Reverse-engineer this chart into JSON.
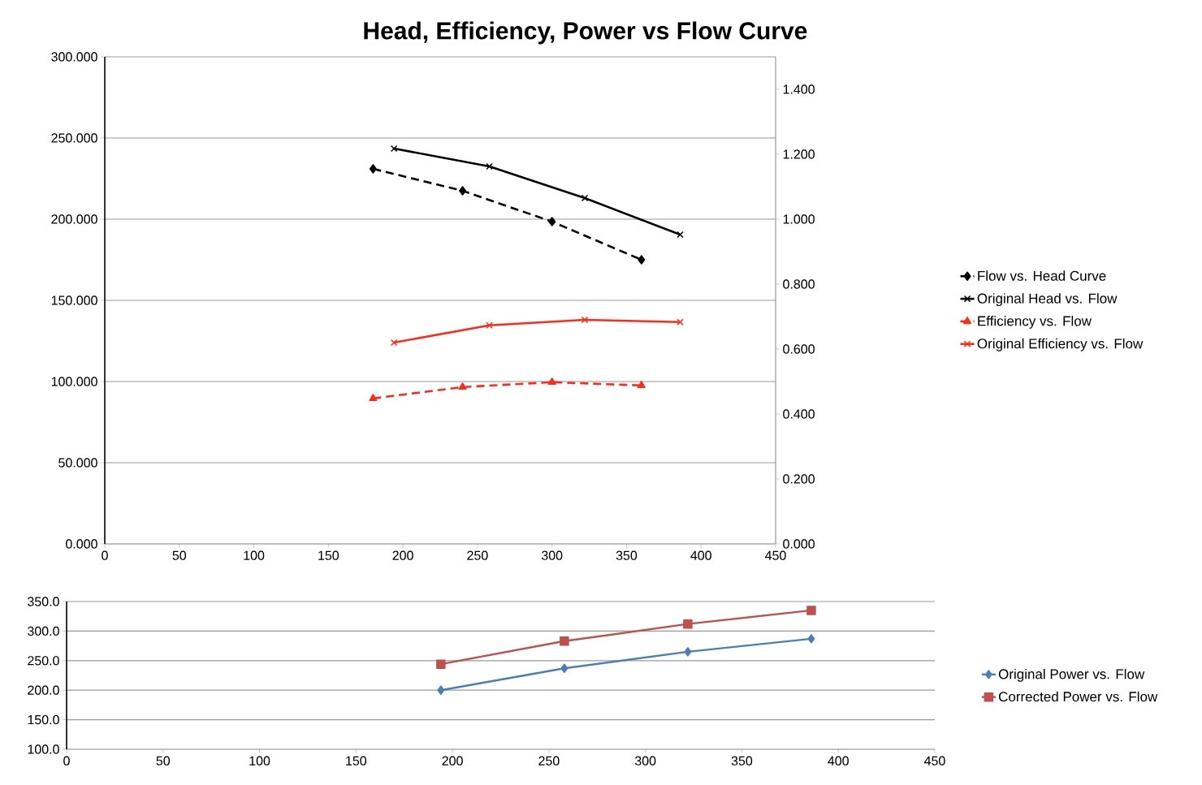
{
  "chart_data": [
    {
      "type": "line",
      "title": "Head, Efficiency, Power  vs Flow Curve",
      "xlim": [
        0,
        450
      ],
      "xticks": [
        0,
        50,
        100,
        150,
        200,
        250,
        300,
        350,
        400,
        450
      ],
      "ylim": [
        0,
        300
      ],
      "yticks": [
        {
          "value": 0,
          "label": "0.000"
        },
        {
          "value": 50,
          "label": "50.000"
        },
        {
          "value": 100,
          "label": "100.000"
        },
        {
          "value": 150,
          "label": "150.000"
        },
        {
          "value": 200,
          "label": "200.000"
        },
        {
          "value": 250,
          "label": "250.000"
        },
        {
          "value": 300,
          "label": "300.000"
        }
      ],
      "y2lim": [
        0,
        1.5
      ],
      "y2ticks": [
        {
          "value": 0,
          "label": "0.000"
        },
        {
          "value": 0.2,
          "label": "0.200"
        },
        {
          "value": 0.4,
          "label": "0.400"
        },
        {
          "value": 0.6,
          "label": "0.600"
        },
        {
          "value": 0.8,
          "label": "0.800"
        },
        {
          "value": 1.0,
          "label": "1.000"
        },
        {
          "value": 1.2,
          "label": "1.200"
        },
        {
          "value": 1.4,
          "label": "1.400"
        }
      ],
      "grid": "y",
      "legend": "right",
      "series": [
        {
          "name": "Flow vs. Head Curve",
          "color": "#000000",
          "marker": "diamond",
          "line_style": "dashed",
          "x": [
            180,
            240,
            300,
            360
          ],
          "values": [
            231,
            217.5,
            198.5,
            175
          ]
        },
        {
          "name": "Original Head vs. Flow",
          "color": "#000000",
          "marker": "cross",
          "line_style": "solid",
          "x": [
            194,
            258,
            322,
            386
          ],
          "values": [
            243.5,
            232.5,
            213,
            190.5
          ]
        },
        {
          "name": "Efficiency vs. Flow",
          "color": "#ff2a1a",
          "marker": "triangle",
          "line_style": "dashed",
          "axis": "y2",
          "x": [
            180,
            240,
            300,
            360
          ],
          "values": [
            0.448,
            0.483,
            0.498,
            0.488
          ]
        },
        {
          "name": "Original Efficiency vs. Flow",
          "color": "#ff2a1a",
          "marker": "cross",
          "line_style": "solid",
          "axis": "y2",
          "x": [
            194,
            258,
            322,
            386
          ],
          "values": [
            0.62,
            0.673,
            0.69,
            0.683
          ]
        }
      ]
    },
    {
      "type": "line",
      "xlim": [
        0,
        450
      ],
      "xticks": [
        0,
        50,
        100,
        150,
        200,
        250,
        300,
        350,
        400,
        450
      ],
      "ylim": [
        100,
        350
      ],
      "yticks": [
        {
          "value": 100,
          "label": "100.0"
        },
        {
          "value": 150,
          "label": "150.0"
        },
        {
          "value": 200,
          "label": "200.0"
        },
        {
          "value": 250,
          "label": "250.0"
        },
        {
          "value": 300,
          "label": "300.0"
        },
        {
          "value": 350,
          "label": "350.0"
        }
      ],
      "grid": "y",
      "legend": "right",
      "series": [
        {
          "name": "Original Power vs. Flow",
          "color": "#4a7ebb",
          "marker": "diamond",
          "line_style": "solid",
          "x": [
            194,
            258,
            322,
            386
          ],
          "values": [
            200,
            237,
            265,
            287
          ]
        },
        {
          "name": "Corrected Power vs. Flow",
          "color": "#c0504d",
          "marker": "square",
          "line_style": "solid",
          "x": [
            194,
            258,
            322,
            386
          ],
          "values": [
            244,
            283,
            312,
            335
          ]
        }
      ]
    }
  ]
}
